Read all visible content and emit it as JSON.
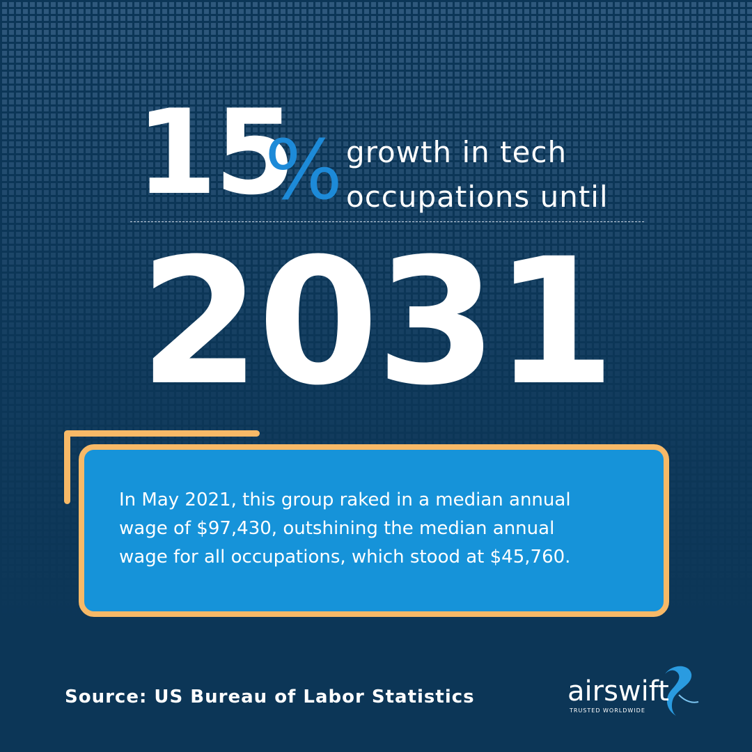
{
  "stat": {
    "number": "15",
    "unit": "%",
    "lines": [
      "growth in tech",
      "occupations until"
    ]
  },
  "year": "2031",
  "callout": {
    "lines": [
      "In May 2021, this group raked in a median annual",
      "wage of $97,430, outshining the median annual",
      "wage for all occupations, which stood at $45,760."
    ]
  },
  "source": "Source: US Bureau of Labor Statistics",
  "logo": {
    "name": "airswift",
    "tagline": "TRUSTED WORLDWIDE"
  }
}
